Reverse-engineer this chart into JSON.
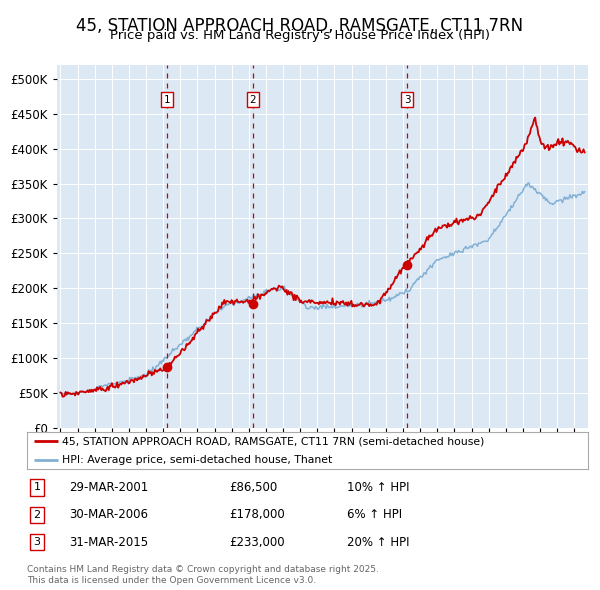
{
  "title1": "45, STATION APPROACH ROAD, RAMSGATE, CT11 7RN",
  "title2": "Price paid vs. HM Land Registry's House Price Index (HPI)",
  "legend_line1": "45, STATION APPROACH ROAD, RAMSGATE, CT11 7RN (semi-detached house)",
  "legend_line2": "HPI: Average price, semi-detached house, Thanet",
  "transactions": [
    {
      "label": "1",
      "date": "29-MAR-2001",
      "price_str": "£86,500",
      "pct": "10% ↑ HPI",
      "year": 2001.24,
      "sale_price": 86500
    },
    {
      "label": "2",
      "date": "30-MAR-2006",
      "price_str": "£178,000",
      "pct": "6% ↑ HPI",
      "year": 2006.24,
      "sale_price": 178000
    },
    {
      "label": "3",
      "date": "31-MAR-2015",
      "price_str": "£233,000",
      "pct": "20% ↑ HPI",
      "year": 2015.24,
      "sale_price": 233000
    }
  ],
  "footer": "Contains HM Land Registry data © Crown copyright and database right 2025.\nThis data is licensed under the Open Government Licence v3.0.",
  "bg_color": "#dce9f5",
  "red_line_color": "#cc0000",
  "blue_line_color": "#82b0d5",
  "vline_color": "#cc0000",
  "box_color": "#cc0000",
  "grid_color": "#ffffff",
  "ylim": [
    0,
    520000
  ],
  "yticks": [
    0,
    50000,
    100000,
    150000,
    200000,
    250000,
    300000,
    350000,
    400000,
    450000,
    500000
  ],
  "xlim_start": 1994.8,
  "xlim_end": 2025.8,
  "title_fontsize": 12,
  "subtitle_fontsize": 10
}
